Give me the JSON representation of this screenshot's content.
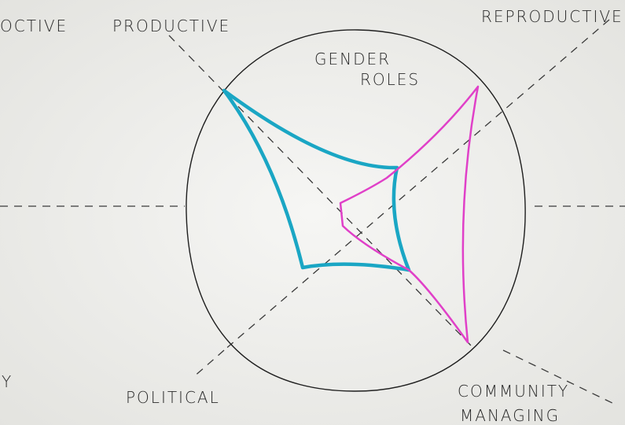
{
  "title": {
    "line1": "GENDER",
    "line2": "ROLES"
  },
  "axes": {
    "left_top_cut": "OCTIVE",
    "productive": "PRODUCTIVE",
    "reproductive": "REPRODUCTIVE",
    "political": "POLITICAL",
    "community_line1": "COMMUNITY",
    "community_line2": "MANAGING",
    "left_bottom_cut": "Y"
  }
}
